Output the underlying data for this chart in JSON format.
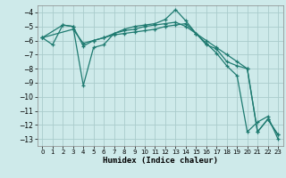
{
  "xlabel": "Humidex (Indice chaleur)",
  "bg_color": "#ceeaea",
  "grid_color": "#aacccc",
  "line_color": "#1e7a70",
  "xlim": [
    -0.5,
    23.5
  ],
  "ylim": [
    -13.5,
    -3.5
  ],
  "yticks": [
    -13,
    -12,
    -11,
    -10,
    -9,
    -8,
    -7,
    -6,
    -5,
    -4
  ],
  "xticks": [
    0,
    1,
    2,
    3,
    4,
    5,
    6,
    7,
    8,
    9,
    10,
    11,
    12,
    13,
    14,
    15,
    16,
    17,
    18,
    19,
    20,
    21,
    22,
    23
  ],
  "series": [
    {
      "x": [
        0,
        2,
        3,
        4,
        5,
        6,
        7,
        8,
        9,
        10,
        11,
        12,
        13,
        14,
        15,
        16,
        17,
        18,
        19,
        20,
        21,
        22,
        23
      ],
      "y": [
        -5.8,
        -4.9,
        -5.0,
        -9.2,
        -6.5,
        -6.3,
        -5.5,
        -5.2,
        -5.0,
        -4.9,
        -4.8,
        -4.5,
        -3.8,
        -4.6,
        -5.5,
        -6.3,
        -6.6,
        -7.5,
        -7.8,
        -8.0,
        -12.5,
        -11.6,
        -12.7
      ]
    },
    {
      "x": [
        0,
        1,
        2,
        3,
        4,
        5,
        6,
        7,
        8,
        9,
        10,
        11,
        12,
        13,
        14,
        15,
        16,
        17,
        18,
        19,
        20,
        21,
        22,
        23
      ],
      "y": [
        -5.8,
        -6.3,
        -4.9,
        -5.0,
        -6.4,
        -6.0,
        -5.8,
        -5.5,
        -5.3,
        -5.2,
        -5.0,
        -4.9,
        -4.8,
        -4.7,
        -5.0,
        -5.5,
        -6.0,
        -6.5,
        -7.0,
        -7.5,
        -8.0,
        -12.5,
        -11.6,
        -12.7
      ]
    },
    {
      "x": [
        0,
        3,
        4,
        5,
        6,
        7,
        8,
        9,
        10,
        11,
        12,
        13,
        14,
        15,
        16,
        17,
        18,
        19,
        20,
        21,
        22,
        23
      ],
      "y": [
        -5.8,
        -5.2,
        -6.2,
        -6.0,
        -5.8,
        -5.6,
        -5.5,
        -5.4,
        -5.3,
        -5.2,
        -5.0,
        -4.9,
        -4.8,
        -5.5,
        -6.2,
        -6.9,
        -7.8,
        -8.5,
        -12.5,
        -11.8,
        -11.4,
        -13.0
      ]
    }
  ]
}
